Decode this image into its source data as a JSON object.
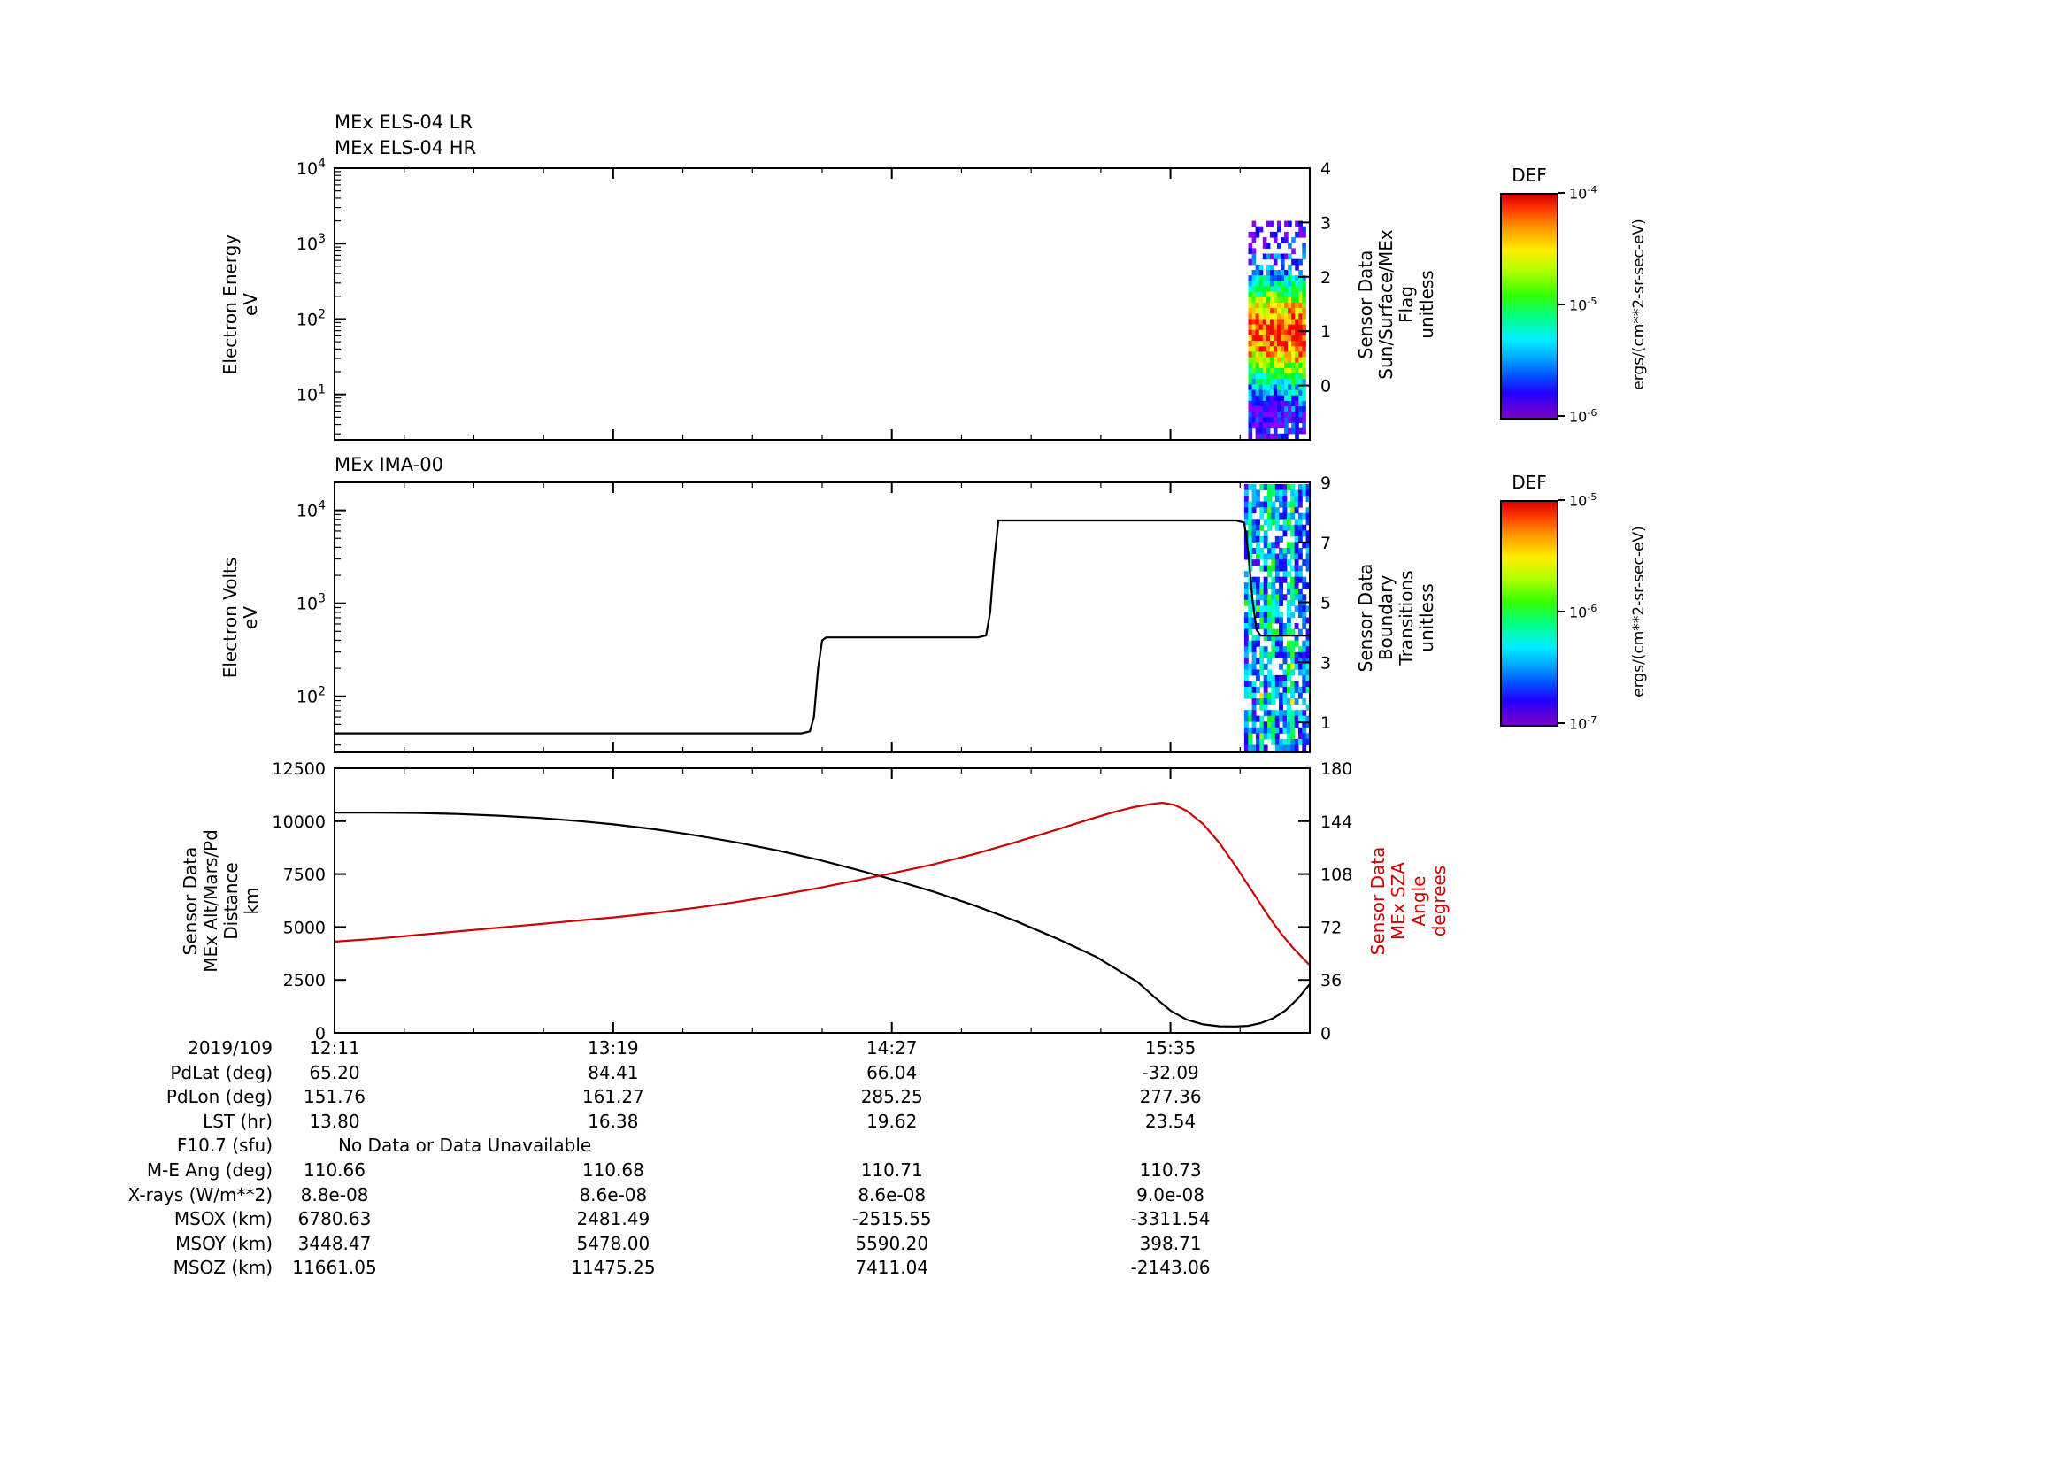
{
  "titles": {
    "panel1_line1": "MEx ELS-04 LR",
    "panel1_line2": "MEx ELS-04 HR",
    "panel2": "MEx IMA-00"
  },
  "time_axis": {
    "date_label": "2019/109",
    "tick_labels": [
      "12:11",
      "13:19",
      "14:27",
      "15:35"
    ],
    "tick_minutes": [
      0,
      68,
      136,
      204
    ],
    "range_minutes": [
      0,
      238
    ]
  },
  "chart_data": [
    {
      "type": "heatmap",
      "name": "els-energy-spectrogram",
      "titles": [
        "MEx ELS-04 LR",
        "MEx ELS-04 HR"
      ],
      "y_axis": {
        "label_lines": [
          "Electron Energy",
          "eV"
        ],
        "scale": "log",
        "range": [
          2.5,
          10000
        ],
        "ticks": [
          10,
          100,
          1000,
          10000
        ]
      },
      "right_axis": {
        "label_lines": [
          "Sensor Data",
          "Sun/Surface/MEx",
          "Flag",
          "unitless"
        ],
        "range": [
          -1,
          4
        ],
        "ticks": [
          0,
          1,
          2,
          3,
          4
        ]
      },
      "spectrogram": {
        "t_min": 223,
        "t_max": 237,
        "e_min": 2.5,
        "e_max": 2000,
        "description": "intense electron flux burst near periapsis: red core ~26-230 eV, yellow-green to ~900 eV, scattered blue-cyan speckle up to ~2000 eV and below 10 eV"
      }
    },
    {
      "type": "heatmap+line",
      "name": "ima-volts-spectrogram",
      "titles": [
        "MEx IMA-00"
      ],
      "y_axis": {
        "label_lines": [
          "Electron Volts",
          "eV"
        ],
        "scale": "log",
        "range": [
          25,
          20000
        ],
        "ticks": [
          100,
          1000,
          10000
        ]
      },
      "right_axis": {
        "label_lines": [
          "Sensor Data",
          "Boundary",
          "Transitions",
          "unitless"
        ],
        "range": [
          0,
          9
        ],
        "ticks": [
          1,
          3,
          5,
          7,
          9
        ]
      },
      "line_series": {
        "name": "IMA scan voltage",
        "color": "#000000",
        "points": [
          [
            0,
            40
          ],
          [
            114,
            40
          ],
          [
            116,
            42
          ],
          [
            117,
            60
          ],
          [
            118,
            200
          ],
          [
            119,
            400
          ],
          [
            120,
            430
          ],
          [
            157,
            430
          ],
          [
            159,
            450
          ],
          [
            160,
            800
          ],
          [
            161,
            3000
          ],
          [
            162,
            7800
          ],
          [
            220,
            7800
          ],
          [
            222,
            7400
          ],
          [
            223,
            3500
          ],
          [
            224,
            1100
          ],
          [
            225,
            520
          ],
          [
            226,
            450
          ],
          [
            238,
            450
          ]
        ]
      },
      "spectrogram": {
        "t_min": 222,
        "t_max": 238,
        "description": "sparse blue-violet counts with cyan-green vertical streaks near periapsis"
      }
    },
    {
      "type": "line",
      "name": "altitude-sza-lines",
      "y_axis": {
        "label_lines": [
          "Sensor Data",
          "MEx Alt/Mars/Pd",
          "Distance",
          "km"
        ],
        "scale": "linear",
        "range": [
          0,
          12500
        ],
        "ticks": [
          0,
          2500,
          5000,
          7500,
          10000,
          12500
        ]
      },
      "right_axis": {
        "label_lines": [
          "Sensor Data",
          "MEx SZA",
          "Angle",
          "degrees"
        ],
        "range": [
          0,
          180
        ],
        "ticks": [
          0,
          36,
          72,
          108,
          144,
          180
        ],
        "color": "#cc0000"
      },
      "series": [
        {
          "name": "MEx altitude (km)",
          "axis": "left",
          "color": "#000000",
          "points": [
            [
              0,
              10400
            ],
            [
              10,
              10400
            ],
            [
              20,
              10390
            ],
            [
              30,
              10340
            ],
            [
              40,
              10260
            ],
            [
              50,
              10150
            ],
            [
              60,
              10000
            ],
            [
              68,
              9850
            ],
            [
              78,
              9620
            ],
            [
              88,
              9330
            ],
            [
              98,
              9000
            ],
            [
              108,
              8620
            ],
            [
              118,
              8180
            ],
            [
              128,
              7680
            ],
            [
              136,
              7250
            ],
            [
              146,
              6680
            ],
            [
              156,
              6030
            ],
            [
              166,
              5300
            ],
            [
              176,
              4480
            ],
            [
              186,
              3580
            ],
            [
              196,
              2400
            ],
            [
              200,
              1700
            ],
            [
              204,
              1050
            ],
            [
              208,
              620
            ],
            [
              212,
              400
            ],
            [
              216,
              310
            ],
            [
              220,
              300
            ],
            [
              223,
              330
            ],
            [
              226,
              460
            ],
            [
              229,
              680
            ],
            [
              232,
              1050
            ],
            [
              235,
              1600
            ],
            [
              238,
              2300
            ]
          ]
        },
        {
          "name": "MEx solar zenith angle (deg)",
          "axis": "right",
          "color": "#cc0000",
          "points": [
            [
              0,
              62
            ],
            [
              10,
              64
            ],
            [
              20,
              66.5
            ],
            [
              30,
              69
            ],
            [
              40,
              71.5
            ],
            [
              50,
              74
            ],
            [
              60,
              76.5
            ],
            [
              68,
              78.5
            ],
            [
              78,
              81.5
            ],
            [
              88,
              85
            ],
            [
              98,
              89
            ],
            [
              108,
              93.5
            ],
            [
              118,
              98.5
            ],
            [
              128,
              104
            ],
            [
              136,
              108.5
            ],
            [
              146,
              114.5
            ],
            [
              156,
              121.5
            ],
            [
              166,
              129.5
            ],
            [
              176,
              138
            ],
            [
              184,
              145
            ],
            [
              190,
              150
            ],
            [
              195,
              153.5
            ],
            [
              199,
              155.5
            ],
            [
              202,
              156.5
            ],
            [
              205,
              155
            ],
            [
              208,
              151
            ],
            [
              212,
              142
            ],
            [
              216,
              129
            ],
            [
              220,
              113
            ],
            [
              224,
              96
            ],
            [
              228,
              79
            ],
            [
              231,
              67.5
            ],
            [
              234,
              57.5
            ],
            [
              238,
              46
            ]
          ]
        }
      ]
    }
  ],
  "colorbars": [
    {
      "title": "DEF",
      "tick_labels": [
        "10^-4",
        "10^-5",
        "10^-6"
      ],
      "unit": "ergs/(cm**2-sr-sec-eV)"
    },
    {
      "title": "DEF",
      "tick_labels": [
        "10^-5",
        "10^-6",
        "10^-7"
      ],
      "unit": "ergs/(cm**2-sr-sec-eV)"
    }
  ],
  "table": {
    "rows": [
      {
        "label": "2019/109",
        "values": [
          "12:11",
          "13:19",
          "14:27",
          "15:35"
        ]
      },
      {
        "label": "PdLat (deg)",
        "values": [
          "65.20",
          "84.41",
          "66.04",
          "-32.09"
        ]
      },
      {
        "label": "PdLon (deg)",
        "values": [
          "151.76",
          "161.27",
          "285.25",
          "277.36"
        ]
      },
      {
        "label": "LST (hr)",
        "values": [
          "13.80",
          "16.38",
          "19.62",
          "23.54"
        ]
      },
      {
        "label": "F10.7 (sfu)",
        "span_value": "No Data or Data Unavailable"
      },
      {
        "label": "M-E Ang (deg)",
        "values": [
          "110.66",
          "110.68",
          "110.71",
          "110.73"
        ]
      },
      {
        "label": "X-rays (W/m**2)",
        "values": [
          "8.8e-08",
          "8.6e-08",
          "8.6e-08",
          "9.0e-08"
        ]
      },
      {
        "label": "MSOX (km)",
        "values": [
          "6780.63",
          "2481.49",
          "-2515.55",
          "-3311.54"
        ]
      },
      {
        "label": "MSOY (km)",
        "values": [
          "3448.47",
          "5478.00",
          "5590.20",
          "398.71"
        ]
      },
      {
        "label": "MSOZ (km)",
        "values": [
          "11661.05",
          "11475.25",
          "7411.04",
          "-2143.06"
        ]
      }
    ]
  }
}
